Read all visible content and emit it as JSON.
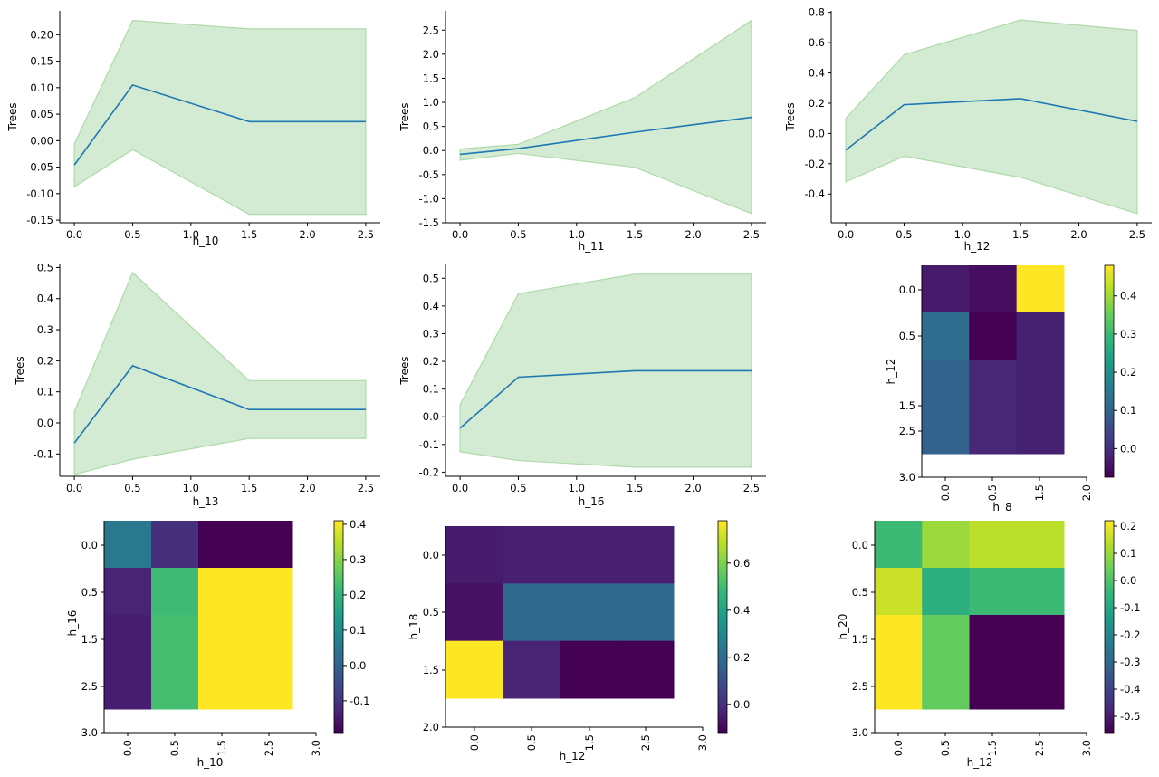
{
  "colors": {
    "line": "#1f77b4",
    "band_fill": "#d2ebd2",
    "band_edge": "#aedaa9",
    "axis": "#000000",
    "viridis": [
      "#440154",
      "#482878",
      "#3e4989",
      "#31688e",
      "#26828e",
      "#1f9e89",
      "#35b779",
      "#6ece58",
      "#b5de2b",
      "#fde725"
    ]
  },
  "chart_data": [
    {
      "type": "line",
      "title": "",
      "xlabel": "h_10",
      "ylabel": "Trees",
      "x": [
        0.0,
        0.5,
        1.5,
        2.5
      ],
      "xlim": [
        -0.125,
        2.625
      ],
      "ylim": [
        -0.155,
        0.245
      ],
      "x_ticks": [
        "0.0",
        "0.5",
        "1.0",
        "1.5",
        "2.0",
        "2.5"
      ],
      "y_ticks": [
        "-0.15",
        "-0.10",
        "-0.05",
        "0.00",
        "0.05",
        "0.10",
        "0.15",
        "0.20"
      ],
      "series": [
        {
          "values": [
            -0.046,
            0.105,
            0.036,
            0.036
          ],
          "lower": [
            -0.087,
            -0.017,
            -0.139,
            -0.139
          ],
          "upper": [
            -0.006,
            0.227,
            0.211,
            0.211
          ]
        }
      ],
      "spines": "left-bottom",
      "grid": false
    },
    {
      "type": "line",
      "title": "",
      "xlabel": "h_11",
      "ylabel": "Trees",
      "x": [
        0.0,
        0.5,
        1.5,
        2.5
      ],
      "xlim": [
        -0.125,
        2.625
      ],
      "ylim": [
        -1.5,
        2.9
      ],
      "x_ticks": [
        "0.0",
        "0.5",
        "1.0",
        "1.5",
        "2.0",
        "2.5"
      ],
      "y_ticks": [
        "-1.5",
        "-1.0",
        "-0.5",
        "0.0",
        "0.5",
        "1.0",
        "1.5",
        "2.0",
        "2.5"
      ],
      "series": [
        {
          "values": [
            -0.08,
            0.04,
            0.38,
            0.69
          ],
          "lower": [
            -0.2,
            -0.06,
            -0.35,
            -1.31
          ],
          "upper": [
            0.03,
            0.13,
            1.1,
            2.7
          ]
        }
      ],
      "spines": "left-bottom",
      "grid": false
    },
    {
      "type": "line",
      "title": "",
      "xlabel": "h_12",
      "ylabel": "Trees",
      "x": [
        0.0,
        0.5,
        1.5,
        2.5
      ],
      "xlim": [
        -0.125,
        2.625
      ],
      "ylim": [
        -0.59,
        0.81
      ],
      "x_ticks": [
        "0.0",
        "0.5",
        "1.0",
        "1.5",
        "2.0",
        "2.5"
      ],
      "y_ticks": [
        "-0.4",
        "-0.2",
        "0.0",
        "0.2",
        "0.4",
        "0.6",
        "0.8"
      ],
      "series": [
        {
          "values": [
            -0.11,
            0.19,
            0.23,
            0.08
          ],
          "lower": [
            -0.32,
            -0.15,
            -0.29,
            -0.53
          ],
          "upper": [
            0.1,
            0.52,
            0.75,
            0.68
          ]
        }
      ],
      "spines": "left-bottom",
      "grid": false
    },
    {
      "type": "line",
      "title": "",
      "xlabel": "h_13",
      "ylabel": "Trees",
      "x": [
        0.0,
        0.5,
        1.5,
        2.5
      ],
      "xlim": [
        -0.125,
        2.625
      ],
      "ylim": [
        -0.172,
        0.51
      ],
      "x_ticks": [
        "0.0",
        "0.5",
        "1.0",
        "1.5",
        "2.0",
        "2.5"
      ],
      "y_ticks": [
        "-0.1",
        "0.0",
        "0.1",
        "0.2",
        "0.3",
        "0.4",
        "0.5"
      ],
      "series": [
        {
          "values": [
            -0.065,
            0.184,
            0.043,
            0.043
          ],
          "lower": [
            -0.166,
            -0.117,
            -0.05,
            -0.05
          ],
          "upper": [
            0.036,
            0.484,
            0.136,
            0.136
          ]
        }
      ],
      "spines": "left-bottom",
      "grid": false
    },
    {
      "type": "line",
      "title": "",
      "xlabel": "h_16",
      "ylabel": "Trees",
      "x": [
        0.0,
        0.5,
        1.5,
        2.5
      ],
      "xlim": [
        -0.125,
        2.625
      ],
      "ylim": [
        -0.215,
        0.55
      ],
      "x_ticks": [
        "0.0",
        "0.5",
        "1.0",
        "1.5",
        "2.0",
        "2.5"
      ],
      "y_ticks": [
        "-0.2",
        "-0.1",
        "0.0",
        "0.1",
        "0.2",
        "0.3",
        "0.4",
        "0.5"
      ],
      "series": [
        {
          "values": [
            -0.041,
            0.143,
            0.166,
            0.166
          ],
          "lower": [
            -0.126,
            -0.158,
            -0.182,
            -0.182
          ],
          "upper": [
            0.044,
            0.444,
            0.515,
            0.515
          ]
        }
      ],
      "spines": "left-bottom",
      "grid": false
    },
    {
      "type": "heatmap",
      "title": "",
      "xlabel": "h_8",
      "ylabel": "h_12",
      "x_ticks": [
        "0.0",
        "0.5",
        "1.5",
        "2.0"
      ],
      "y_ticks": [
        "0.0",
        "0.5",
        "1.5",
        "2.5",
        "3.0"
      ],
      "values": [
        [
          -0.035,
          -0.055,
          0.48
        ],
        [
          0.12,
          -0.075,
          -0.025
        ],
        [
          0.1,
          -0.015,
          -0.025
        ],
        [
          0.1,
          -0.015,
          -0.025
        ]
      ],
      "colorbar": {
        "min": -0.075,
        "max": 0.48,
        "ticks": [
          "0.0",
          "0.1",
          "0.2",
          "0.3",
          "0.4"
        ],
        "tick_values": [
          0,
          0.1,
          0.2,
          0.3,
          0.4
        ]
      }
    },
    {
      "type": "heatmap",
      "title": "",
      "xlabel": "h_10",
      "ylabel": "h_16",
      "x_ticks": [
        "0.0",
        "0.5",
        "1.5",
        "2.5",
        "3.0"
      ],
      "y_ticks": [
        "0.0",
        "0.5",
        "1.5",
        "2.5",
        "3.0"
      ],
      "values": [
        [
          0.05,
          -0.11,
          -0.19,
          -0.19
        ],
        [
          -0.13,
          0.22,
          0.41,
          0.41
        ],
        [
          -0.14,
          0.23,
          0.41,
          0.41
        ],
        [
          -0.14,
          0.23,
          0.41,
          0.41
        ]
      ],
      "colorbar": {
        "min": -0.19,
        "max": 0.41,
        "ticks": [
          "-0.1",
          "0.0",
          "0.1",
          "0.2",
          "0.3",
          "0.4"
        ],
        "tick_values": [
          -0.1,
          0,
          0.1,
          0.2,
          0.3,
          0.4
        ]
      }
    },
    {
      "type": "heatmap",
      "title": "",
      "xlabel": "h_12",
      "ylabel": "h_18",
      "x_ticks": [
        "0.0",
        "0.5",
        "1.5",
        "2.5",
        "3.0"
      ],
      "y_ticks": [
        "0.0",
        "0.5",
        "1.5",
        "2.0"
      ],
      "values": [
        [
          -0.05,
          -0.04,
          -0.04,
          -0.04
        ],
        [
          -0.08,
          0.19,
          0.19,
          0.19
        ],
        [
          0.78,
          -0.03,
          -0.12,
          -0.12
        ]
      ],
      "colorbar": {
        "min": -0.12,
        "max": 0.78,
        "ticks": [
          "0.0",
          "0.2",
          "0.4",
          "0.6"
        ],
        "tick_values": [
          0,
          0.2,
          0.4,
          0.6
        ]
      }
    },
    {
      "type": "heatmap",
      "title": "",
      "xlabel": "h_12",
      "ylabel": "h_20",
      "x_ticks": [
        "0.0",
        "0.5",
        "1.5",
        "2.5",
        "3.0"
      ],
      "y_ticks": [
        "0.0",
        "0.5",
        "1.5",
        "2.5",
        "3.0"
      ],
      "values": [
        [
          -0.03,
          0.1,
          0.14,
          0.14
        ],
        [
          0.16,
          -0.07,
          -0.03,
          -0.03
        ],
        [
          0.22,
          0.03,
          -0.56,
          -0.56
        ],
        [
          0.22,
          0.03,
          -0.56,
          -0.56
        ]
      ],
      "colorbar": {
        "min": -0.56,
        "max": 0.22,
        "ticks": [
          "-0.5",
          "-0.4",
          "-0.3",
          "-0.2",
          "-0.1",
          "0.0",
          "0.1",
          "0.2"
        ],
        "tick_values": [
          -0.5,
          -0.4,
          -0.3,
          -0.2,
          -0.1,
          0,
          0.1,
          0.2
        ]
      }
    }
  ]
}
